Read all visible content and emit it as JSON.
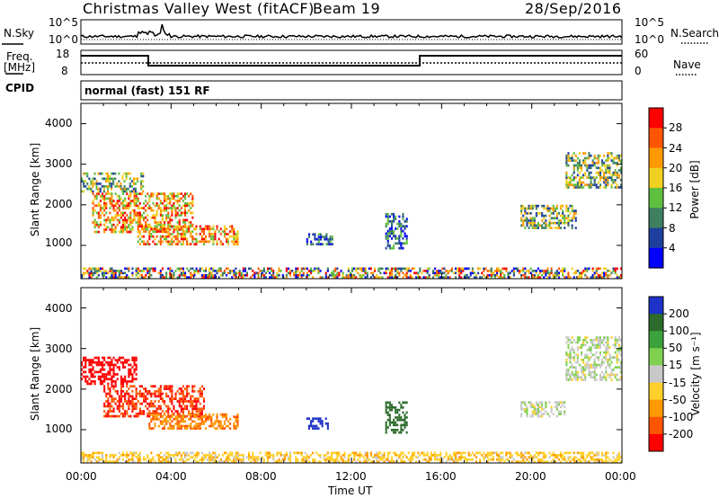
{
  "header": {
    "site_title": "Christmas Valley West (fitACF)",
    "beam_label": "Beam 19",
    "date": "28/Sep/2016"
  },
  "noise_panel": {
    "left_label": "N.Sky",
    "right_label": "N.Search",
    "left_ticks": [
      "10^5",
      "10^0"
    ],
    "right_ticks": [
      "10^5",
      "10^0"
    ]
  },
  "freq_panel": {
    "left_label_line1": "Freq.",
    "left_label_line2": "[MHz]",
    "left_ticks": [
      "18",
      "8"
    ],
    "right_label": "Nave",
    "right_ticks": [
      "60",
      "0"
    ],
    "cpid_label": "CPID",
    "cpid_mode": "normal (fast) 151 RF"
  },
  "x_axis": {
    "label": "Time UT",
    "tick_labels": [
      "00:00",
      "04:00",
      "08:00",
      "12:00",
      "16:00",
      "20:00",
      "00:00"
    ]
  },
  "chart_data": [
    {
      "type": "heatmap",
      "title": "",
      "parameter": "Power",
      "xlabel": "Time UT",
      "ylabel": "Slant Range [km]",
      "xlim": [
        0,
        24
      ],
      "ylim": [
        180,
        4500
      ],
      "y_tick_labels": [
        "1000",
        "2000",
        "3000",
        "4000"
      ],
      "colorbar": {
        "label": "Power [dB]",
        "tick_labels": [
          "4",
          "8",
          "12",
          "16",
          "20",
          "24",
          "28"
        ],
        "colors": [
          "#0000ff",
          "#1f3f9f",
          "#3d7f5f",
          "#5fbf3f",
          "#f0d020",
          "#ff9900",
          "#ff5500",
          "#ff0000"
        ]
      },
      "regions": [
        {
          "t_start": 0.0,
          "t_end": 2.8,
          "r_start": 2300,
          "r_end": 2800,
          "level": "medium"
        },
        {
          "t_start": 0.5,
          "t_end": 5.0,
          "r_start": 1300,
          "r_end": 2300,
          "level": "high"
        },
        {
          "t_start": 2.5,
          "t_end": 7.0,
          "r_start": 1000,
          "r_end": 1500,
          "level": "high"
        },
        {
          "t_start": 10.0,
          "t_end": 11.2,
          "r_start": 1000,
          "r_end": 1300,
          "level": "low"
        },
        {
          "t_start": 13.5,
          "t_end": 14.5,
          "r_start": 900,
          "r_end": 1800,
          "level": "low"
        },
        {
          "t_start": 19.5,
          "t_end": 22.0,
          "r_start": 1400,
          "r_end": 2000,
          "level": "medium"
        },
        {
          "t_start": 21.5,
          "t_end": 24.0,
          "r_start": 2400,
          "r_end": 3300,
          "level": "medium"
        },
        {
          "t_start": 0.0,
          "t_end": 24.0,
          "r_start": 180,
          "r_end": 450,
          "level": "mixed"
        }
      ]
    },
    {
      "type": "heatmap",
      "title": "",
      "parameter": "Velocity",
      "xlabel": "Time UT",
      "ylabel": "Slant Range [km]",
      "xlim": [
        0,
        24
      ],
      "ylim": [
        180,
        4500
      ],
      "y_tick_labels": [
        "1000",
        "2000",
        "3000",
        "4000"
      ],
      "colorbar": {
        "label": "Velocity [m s⁻¹]",
        "tick_labels": [
          "200",
          "100",
          "50",
          "15",
          "-15",
          "-50",
          "-100",
          "-200"
        ],
        "colors": [
          "#1e32c8",
          "#2c6b2c",
          "#3ca23c",
          "#80d050",
          "#c8c8c8",
          "#ffd02a",
          "#ff9900",
          "#ff5500",
          "#ff0000"
        ]
      },
      "regions": [
        {
          "t_start": 0.0,
          "t_end": 2.5,
          "r_start": 2100,
          "r_end": 2800,
          "velocity": -200
        },
        {
          "t_start": 1.0,
          "t_end": 5.5,
          "r_start": 1300,
          "r_end": 2100,
          "velocity": -150
        },
        {
          "t_start": 3.0,
          "t_end": 7.0,
          "r_start": 1000,
          "r_end": 1400,
          "velocity": -75
        },
        {
          "t_start": 10.0,
          "t_end": 11.0,
          "r_start": 1000,
          "r_end": 1300,
          "velocity": 200
        },
        {
          "t_start": 13.5,
          "t_end": 14.5,
          "r_start": 900,
          "r_end": 1700,
          "velocity": 100
        },
        {
          "t_start": 19.5,
          "t_end": 21.5,
          "r_start": 1300,
          "r_end": 1700,
          "velocity": 0
        },
        {
          "t_start": 21.5,
          "t_end": 24.0,
          "r_start": 2200,
          "r_end": 3300,
          "velocity": 0
        },
        {
          "t_start": 0.0,
          "t_end": 24.0,
          "r_start": 180,
          "r_end": 450,
          "velocity": -30
        }
      ]
    }
  ]
}
